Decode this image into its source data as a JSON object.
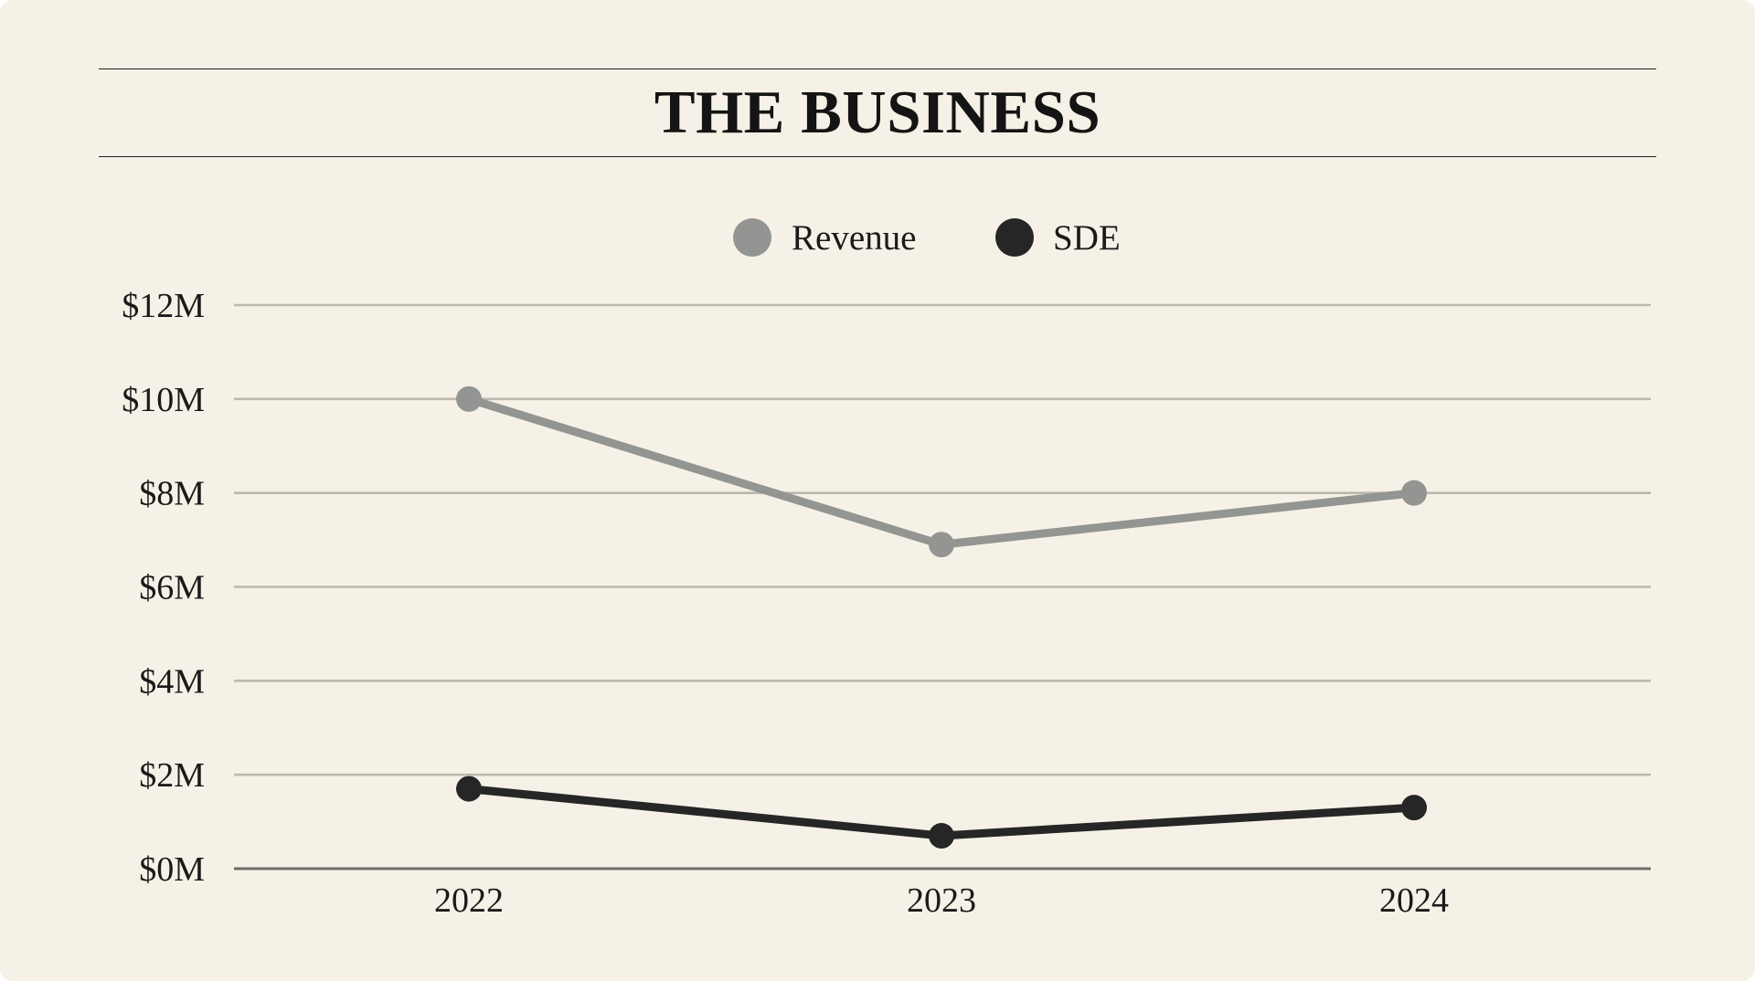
{
  "header": {
    "title": "THE BUSINESS"
  },
  "chart_data": {
    "type": "line",
    "title": "THE BUSINESS",
    "xlabel": "",
    "ylabel": "",
    "categories": [
      "2022",
      "2023",
      "2024"
    ],
    "ylim": [
      0,
      12
    ],
    "yticks": [
      0,
      2,
      4,
      6,
      8,
      10,
      12
    ],
    "ytick_labels": [
      "$0M",
      "$2M",
      "$4M",
      "$6M",
      "$8M",
      "$10M",
      "$12M"
    ],
    "unit": "$M",
    "grid": true,
    "legend_position": "top-center",
    "series": [
      {
        "name": "Revenue",
        "values": [
          10.0,
          6.9,
          8.0
        ],
        "color": "#939592"
      },
      {
        "name": "SDE",
        "values": [
          1.7,
          0.7,
          1.3
        ],
        "color": "#262626"
      }
    ],
    "colors": {
      "background": "#f6f1e6",
      "grid": "#bdb8ac",
      "axis": "#6e6b66"
    }
  }
}
